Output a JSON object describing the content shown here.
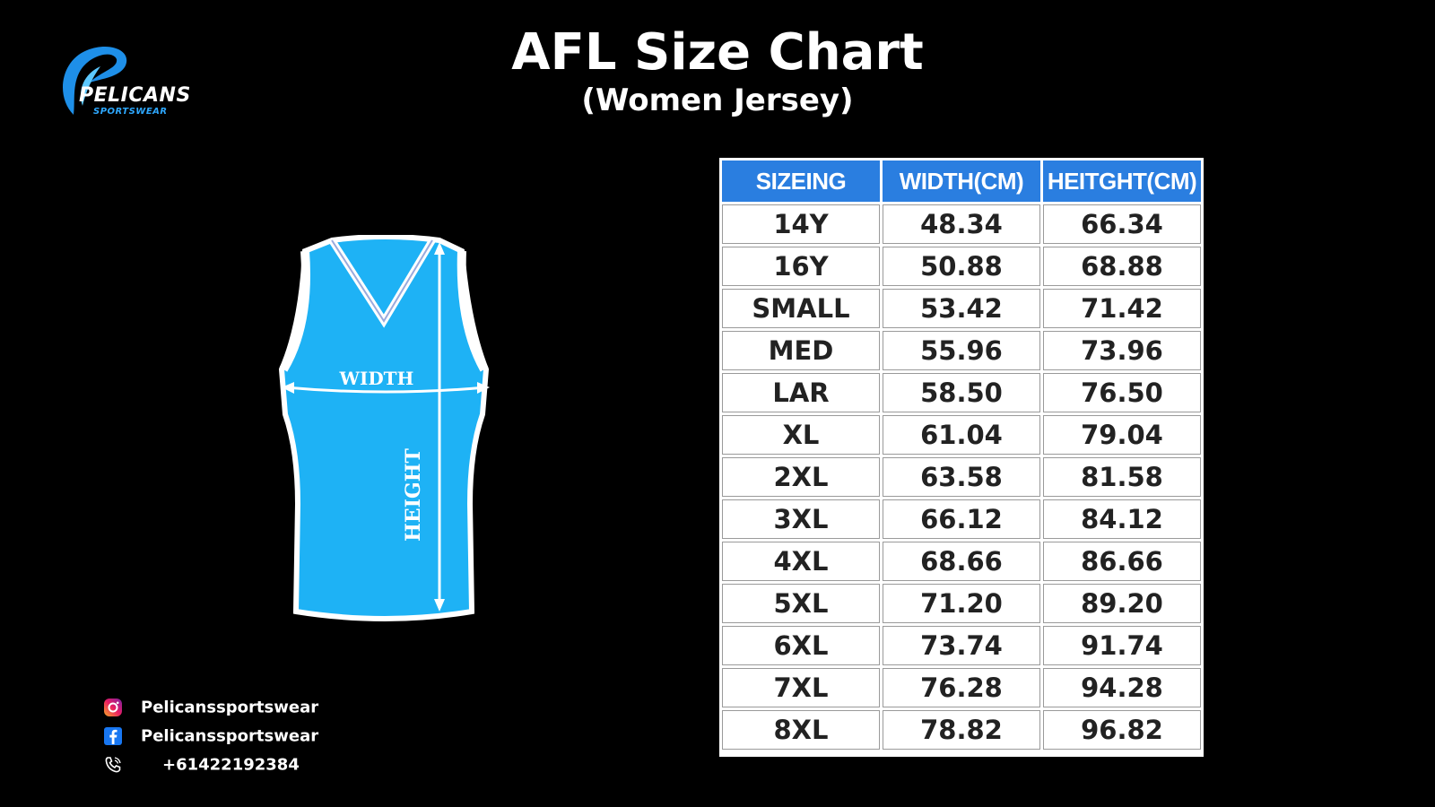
{
  "logo": {
    "name": "PELICANS",
    "sub": "SPORTSWEAR"
  },
  "title": "AFL Size Chart",
  "subtitle": "(Women Jersey)",
  "jersey": {
    "width_label": "WIDTH",
    "height_label": "HEIGHT",
    "color": "#1eb2f5"
  },
  "table": {
    "headers": [
      "SIZEING",
      "WIDTH(CM)",
      "HEITGHT(CM)"
    ],
    "rows": [
      [
        "14Y",
        "48.34",
        "66.34"
      ],
      [
        "16Y",
        "50.88",
        "68.88"
      ],
      [
        "SMALL",
        "53.42",
        "71.42"
      ],
      [
        "MED",
        "55.96",
        "73.96"
      ],
      [
        "LAR",
        "58.50",
        "76.50"
      ],
      [
        "XL",
        "61.04",
        "79.04"
      ],
      [
        "2XL",
        "63.58",
        "81.58"
      ],
      [
        "3XL",
        "66.12",
        "84.12"
      ],
      [
        "4XL",
        "68.66",
        "86.66"
      ],
      [
        "5XL",
        "71.20",
        "89.20"
      ],
      [
        "6XL",
        "73.74",
        "91.74"
      ],
      [
        "7XL",
        "76.28",
        "94.28"
      ],
      [
        "8XL",
        "78.82",
        "96.82"
      ]
    ]
  },
  "social": {
    "instagram": "Pelicanssportswear",
    "facebook": "Pelicanssportswear",
    "phone": "+61422192384"
  }
}
